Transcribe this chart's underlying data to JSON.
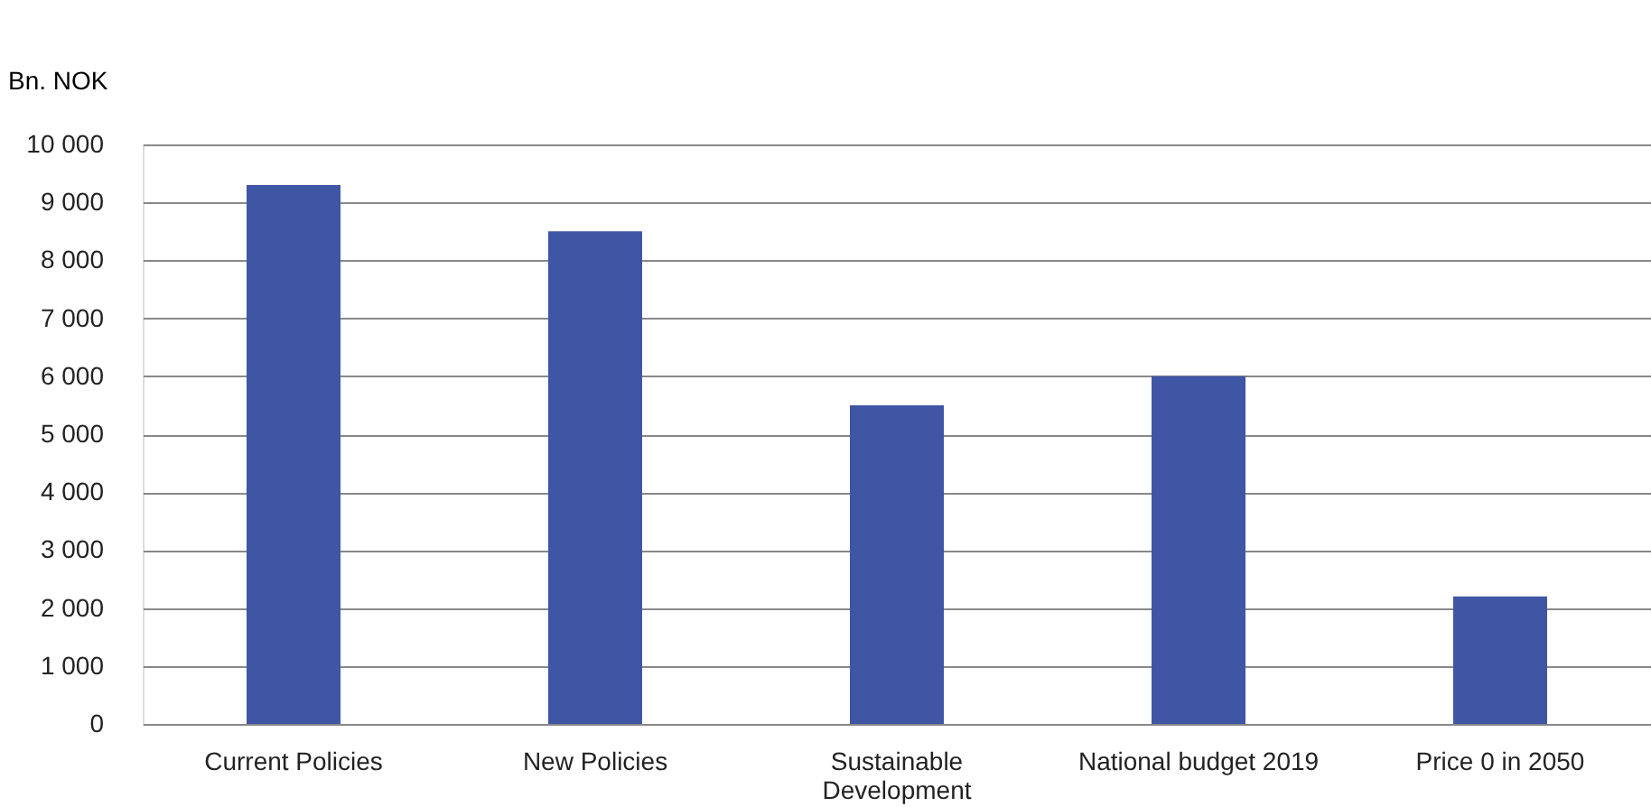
{
  "chart_data": {
    "type": "bar",
    "ylabel": "Bn. NOK",
    "categories": [
      "Current Policies",
      "New Policies",
      "Sustainable Development",
      "National budget 2019",
      "Price 0 in 2050"
    ],
    "values": [
      9300,
      8500,
      5500,
      6000,
      2200
    ],
    "color": "#3f56a5",
    "ylim": [
      0,
      10000
    ],
    "yticks": [
      0,
      {
        "value": 1000,
        "label": "1 000"
      },
      {
        "value": 2000,
        "label": "2 000"
      },
      {
        "value": 3000,
        "label": "3 000"
      },
      {
        "value": 4000,
        "label": "4 000"
      },
      {
        "value": 5000,
        "label": "5 000"
      },
      {
        "value": 6000,
        "label": "6 000"
      },
      {
        "value": 7000,
        "label": "7 000"
      },
      {
        "value": 8000,
        "label": "8 000"
      },
      {
        "value": 9000,
        "label": "9 000"
      },
      {
        "value": 10000,
        "label": "10 000"
      }
    ],
    "grid": "y"
  }
}
